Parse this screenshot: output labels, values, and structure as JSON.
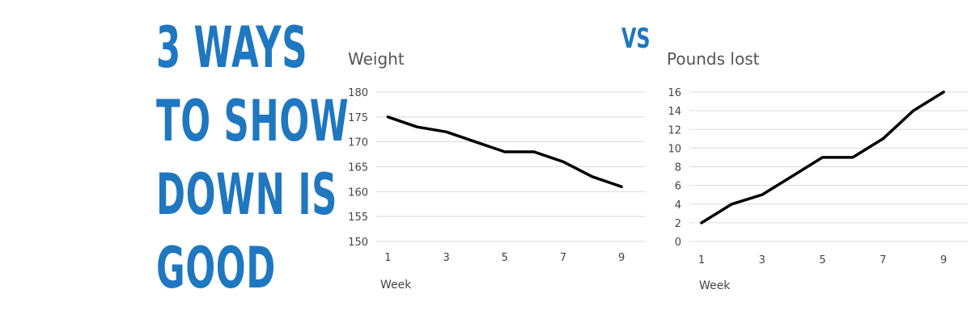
{
  "headline": {
    "lines": [
      "3 WAYS",
      "TO SHOW",
      "DOWN IS",
      "GOOD"
    ],
    "color": "#1f77c0"
  },
  "vs_label": "VS",
  "chart_data": [
    {
      "type": "line",
      "title": "Weight",
      "xlabel": "Week",
      "ylabel": "",
      "x": [
        1,
        2,
        3,
        4,
        5,
        6,
        7,
        8,
        9
      ],
      "x_tick_labels": [
        "1",
        "3",
        "5",
        "7",
        "9"
      ],
      "x_tick_values": [
        1,
        3,
        5,
        7,
        9
      ],
      "ylim": [
        150,
        180
      ],
      "y_tick_labels": [
        "180",
        "175",
        "170",
        "165",
        "160",
        "155",
        "150"
      ],
      "y_tick_values": [
        180,
        175,
        170,
        165,
        160,
        155,
        150
      ],
      "series": [
        {
          "values": [
            175,
            173,
            172,
            170,
            168,
            168,
            166,
            163,
            161
          ]
        }
      ],
      "grid": true,
      "line_color": "#000000"
    },
    {
      "type": "line",
      "title": "Pounds lost",
      "xlabel": "Week",
      "ylabel": "",
      "x": [
        1,
        2,
        3,
        4,
        5,
        6,
        7,
        8,
        9
      ],
      "x_tick_labels": [
        "1",
        "3",
        "5",
        "7",
        "9"
      ],
      "x_tick_values": [
        1,
        3,
        5,
        7,
        9
      ],
      "ylim": [
        0,
        16
      ],
      "y_tick_labels": [
        "16",
        "14",
        "12",
        "10",
        "8",
        "6",
        "4",
        "2",
        "0"
      ],
      "y_tick_values": [
        16,
        14,
        12,
        10,
        8,
        6,
        4,
        2,
        0
      ],
      "series": [
        {
          "values": [
            2,
            4,
            5,
            7,
            9,
            9,
            11,
            14,
            16
          ]
        }
      ],
      "grid": true,
      "line_color": "#000000"
    }
  ]
}
